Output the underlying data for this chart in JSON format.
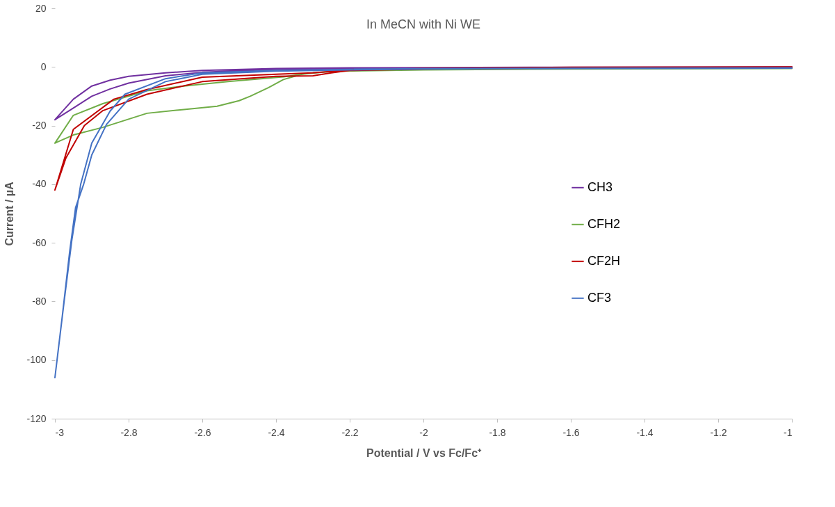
{
  "chart_data": {
    "type": "line",
    "title": "In MeCN with Ni WE",
    "xlabel": "Potential / V vs Fc/Fc⁺",
    "ylabel": "Current / µA",
    "xlim": [
      -3,
      -1
    ],
    "xticks": [
      -3,
      -2.8,
      -2.6,
      -2.4,
      -2.2,
      -2,
      -1.8,
      -1.6,
      -1.4,
      -1.2,
      -1
    ],
    "ylim": [
      -120,
      20
    ],
    "yticks": [
      -120,
      -100,
      -80,
      -60,
      -40,
      -20,
      0,
      20
    ],
    "grid": false,
    "legend": "right",
    "marker": "none",
    "line_style": "solid",
    "series": [
      {
        "name": "CH3",
        "color": "#7030a0",
        "x": [
          -1,
          -1.6,
          -2.0,
          -2.2,
          -2.4,
          -2.6,
          -2.7,
          -2.8,
          -2.85,
          -2.9,
          -2.95,
          -3,
          -2.95,
          -2.9,
          -2.85,
          -2.8,
          -2.7,
          -2.6,
          -2.4,
          -2.2,
          -2.0,
          -1.6,
          -1
        ],
        "values": [
          0,
          -0.1,
          -0.2,
          -0.3,
          -0.5,
          -1.2,
          -2.0,
          -3.2,
          -4.5,
          -6.5,
          -11,
          -18,
          -14,
          -10,
          -7.5,
          -5.5,
          -3,
          -1.8,
          -0.8,
          -0.5,
          -0.3,
          -0.2,
          -0.1
        ]
      },
      {
        "name": "CFH2",
        "color": "#70ad47",
        "x": [
          -1,
          -1.6,
          -2.0,
          -2.2,
          -2.3,
          -2.38,
          -2.53,
          -2.65,
          -2.75,
          -2.87,
          -2.95,
          -3,
          -2.99,
          -2.95,
          -2.87,
          -2.75,
          -2.65,
          -2.56,
          -2.5,
          -2.47,
          -2.42,
          -2.38,
          -2.33,
          -2.25,
          -2.0,
          -1.6,
          -1
        ],
        "values": [
          -0.3,
          -0.5,
          -0.8,
          -1.2,
          -2,
          -3.4,
          -5,
          -6.5,
          -8.1,
          -12.5,
          -16.5,
          -26,
          -25.4,
          -23.2,
          -20.6,
          -15.8,
          -14.5,
          -13.4,
          -11.5,
          -10,
          -7,
          -4.3,
          -2.5,
          -1.5,
          -1,
          -0.7,
          -0.5
        ]
      },
      {
        "name": "CF2H",
        "color": "#c00000",
        "x": [
          -1,
          -1.6,
          -2.0,
          -2.2,
          -2.3,
          -2.4,
          -2.6,
          -2.75,
          -2.84,
          -2.95,
          -3,
          -2.97,
          -2.92,
          -2.87,
          -2.75,
          -2.6,
          -2.4,
          -2.3,
          -2.25,
          -2.2,
          -2.0,
          -1.6,
          -1
        ],
        "values": [
          0,
          -0.1,
          -0.5,
          -1,
          -2,
          -2.5,
          -3.5,
          -7.7,
          -11,
          -21.3,
          -42,
          -31,
          -20,
          -14.9,
          -9.3,
          -5,
          -3.2,
          -3,
          -2,
          -1.2,
          -0.7,
          -0.3,
          -0.2
        ]
      },
      {
        "name": "CF3",
        "color": "#4472c4",
        "x": [
          -1,
          -1.6,
          -2.0,
          -2.2,
          -2.4,
          -2.6,
          -2.7,
          -2.81,
          -2.85,
          -2.9,
          -2.93,
          -2.954,
          -2.975,
          -3,
          -2.98,
          -2.96,
          -2.944,
          -2.922,
          -2.9,
          -2.86,
          -2.8,
          -2.7,
          -2.6,
          -2.4,
          -2.2,
          -2.0,
          -1.6,
          -1
        ],
        "values": [
          -0.3,
          -0.4,
          -0.6,
          -0.8,
          -1.2,
          -2,
          -4,
          -9.3,
          -15,
          -26,
          -40,
          -59,
          -80,
          -106,
          -85,
          -63,
          -48,
          -40,
          -30,
          -19.6,
          -11,
          -5,
          -2.5,
          -1.4,
          -1,
          -0.7,
          -0.5,
          -0.4
        ]
      }
    ]
  }
}
